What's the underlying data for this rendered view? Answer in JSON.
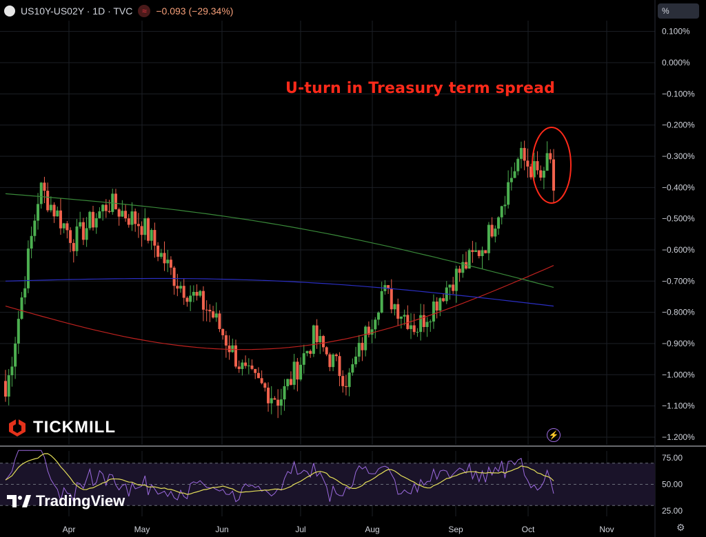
{
  "header": {
    "symbol": "US10Y-US02Y · 1D · TVC",
    "change": "−0.093 (−29.34%)",
    "flag_icon": "≈"
  },
  "scale_button": "%",
  "annotation": "U-turn in Treasury term spread",
  "branding": {
    "tickmill": "TICKMILL",
    "tradingview": "TradingView"
  },
  "colors": {
    "up": "#4caf50",
    "down": "#f0624d",
    "ma_red": "#c0221f",
    "ma_green": "#3a8a3a",
    "ma_blue": "#2b2fc4",
    "rsi": "#9c6bdf",
    "rsi_ma": "#e6e05a",
    "highlight": "#ff2a1a"
  },
  "chart_data": [
    {
      "type": "candlestick",
      "title": "US10Y-US02Y · 1D · TVC",
      "ylabel": "%",
      "ylim": [
        -1.22,
        0.15
      ],
      "y_ticks": [
        "0.100%",
        "0.000%",
        "−0.100%",
        "−0.200%",
        "−0.300%",
        "−0.400%",
        "−0.500%",
        "−0.600%",
        "−0.700%",
        "−0.800%",
        "−0.900%",
        "−1.000%",
        "−1.100%",
        "−1.200%"
      ],
      "x_ticks": [
        "Apr",
        "May",
        "Jun",
        "Jul",
        "Aug",
        "Sep",
        "Oct",
        "Nov"
      ],
      "approx_closes_by_period": [
        {
          "period": "late Mar",
          "close": -1.07
        },
        {
          "period": "early Apr",
          "close": -0.4
        },
        {
          "period": "mid Apr",
          "close": -0.57
        },
        {
          "period": "early May",
          "close": -0.45
        },
        {
          "period": "mid May",
          "close": -0.52
        },
        {
          "period": "late May",
          "close": -0.7
        },
        {
          "period": "early Jun",
          "close": -0.8
        },
        {
          "period": "late Jun",
          "close": -1.0
        },
        {
          "period": "early Jul",
          "close": -1.08
        },
        {
          "period": "mid Jul",
          "close": -0.88
        },
        {
          "period": "late Jul",
          "close": -1.02
        },
        {
          "period": "early Aug",
          "close": -0.73
        },
        {
          "period": "late Aug",
          "close": -0.85
        },
        {
          "period": "early Sep",
          "close": -0.7
        },
        {
          "period": "late Sep",
          "close": -0.58
        },
        {
          "period": "early Oct",
          "close": -0.3
        },
        {
          "period": "mid Oct",
          "close": -0.41
        }
      ],
      "moving_averages": [
        {
          "color": "red",
          "start": -0.78,
          "end": -0.65
        },
        {
          "color": "green",
          "start": -0.42,
          "end": -0.72
        },
        {
          "color": "blue",
          "start": -0.7,
          "end": -0.78
        }
      ]
    },
    {
      "type": "line",
      "name": "RSI",
      "ylim": [
        20,
        85
      ],
      "y_ticks": [
        "75.00",
        "50.00",
        "25.00"
      ],
      "levels": [
        70,
        50,
        30
      ]
    }
  ]
}
